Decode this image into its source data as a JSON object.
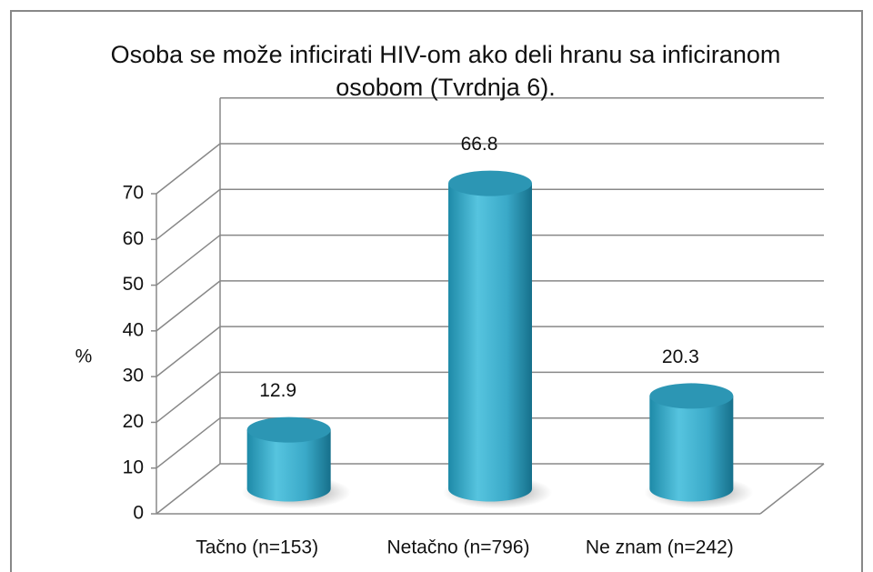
{
  "chart_data": {
    "type": "cylinder-bar",
    "title": "Osoba se može inficirati HIV-om ako deli hranu sa inficiranom osobom (Tvrdnja 6).",
    "y_label": "%",
    "categories": [
      "Tačno (n=153)",
      "Netačno (n=796)",
      "Ne znam (n=242)"
    ],
    "values": [
      12.9,
      66.8,
      20.3
    ],
    "color": "#3fb0cf",
    "ylim": [
      0,
      70
    ],
    "yticks": [
      0,
      10,
      20,
      30,
      40,
      50,
      60,
      70
    ],
    "grid": true
  }
}
